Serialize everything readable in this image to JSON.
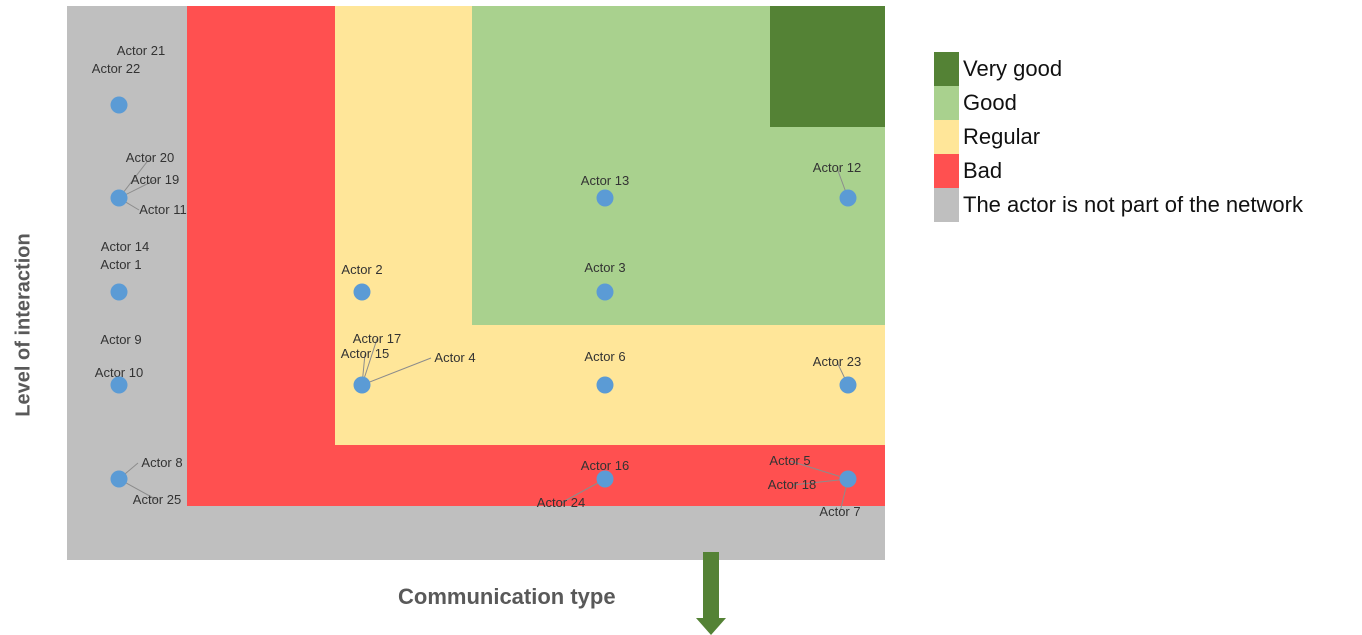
{
  "colors": {
    "very_good": "#548235",
    "good": "#a9d18e",
    "regular": "#ffe699",
    "bad": "#ff5050",
    "outside": "#bfbfbf",
    "actor": "#5b9bd5",
    "arrow": "#548235"
  },
  "legend": [
    {
      "key": "very_good",
      "label": "Very good"
    },
    {
      "key": "good",
      "label": "Good"
    },
    {
      "key": "regular",
      "label": "Regular"
    },
    {
      "key": "bad",
      "label": "Bad"
    },
    {
      "key": "outside",
      "label": "The actor is not part of the network"
    }
  ],
  "axes": {
    "x_label": "Communication type",
    "y_label": "Level of interaction"
  },
  "actor_groups": [
    {
      "labels": [
        "Actor 21",
        "Actor 22"
      ]
    },
    {
      "labels": [
        "Actor 20",
        "Actor 19",
        "Actor 11"
      ]
    },
    {
      "labels": [
        "Actor 14",
        "Actor 1"
      ]
    },
    {
      "labels": [
        "Actor 9",
        "Actor 10"
      ]
    },
    {
      "labels": [
        "Actor 8",
        "Actor 25"
      ]
    },
    {
      "labels": [
        "Actor 2"
      ]
    },
    {
      "labels": [
        "Actor 17",
        "Actor 15",
        "Actor 4"
      ]
    },
    {
      "labels": [
        "Actor 13"
      ]
    },
    {
      "labels": [
        "Actor 3"
      ]
    },
    {
      "labels": [
        "Actor 6"
      ]
    },
    {
      "labels": [
        "Actor 16",
        "Actor 24"
      ]
    },
    {
      "labels": [
        "Actor 12"
      ]
    },
    {
      "labels": [
        "Actor 23"
      ]
    },
    {
      "labels": [
        "Actor 5",
        "Actor 18",
        "Actor 7"
      ]
    }
  ]
}
